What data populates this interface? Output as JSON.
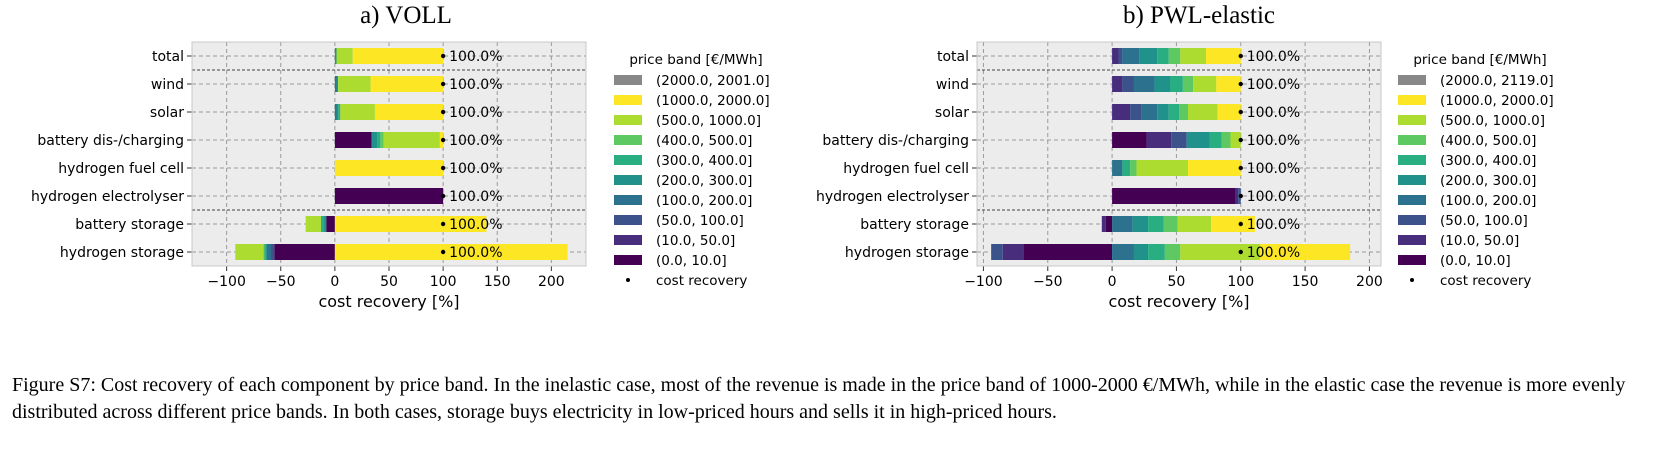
{
  "figure_caption": "Figure S7: Cost recovery of each component by price band. In the inelastic case, most of the revenue is made in the price band of 1000-2000 €/MWh, while in the elastic case the revenue is more evenly distributed across different price bands. In both cases, storage buys electricity in low-priced hours and sells it in high-priced hours.",
  "colors": {
    "bands": [
      "#440154",
      "#472d7b",
      "#3b528b",
      "#2c728e",
      "#21918c",
      "#28ae80",
      "#5ec962",
      "#addc30",
      "#fde725"
    ],
    "panel_bg": "#ececec",
    "marker": "#000000"
  },
  "chart_data": [
    {
      "type": "bar",
      "orientation": "horizontal",
      "stacked": true,
      "title": "a) VOLL",
      "xlabel": "cost recovery [%]",
      "xlim": [
        -132,
        232
      ],
      "xticks": [
        -100,
        -50,
        0,
        50,
        100,
        150,
        200
      ],
      "xtick_labels": [
        "−100",
        "−50",
        "0",
        "50",
        "100",
        "150",
        "200"
      ],
      "grid": true,
      "categories": [
        "total",
        "wind",
        "solar",
        "battery dis-/charging",
        "hydrogen fuel cell",
        "hydrogen electrolyser",
        "battery storage",
        "hydrogen storage"
      ],
      "group_separators_after": [
        "total",
        "hydrogen electrolyser"
      ],
      "legend_title": "price band [€/MWh]",
      "legend_placement": "right",
      "cost_recovery_label": "cost recovery",
      "series": [
        {
          "name": "(0.0, 10.0]",
          "values": [
            0,
            0,
            0,
            34,
            0,
            100,
            -8,
            -56
          ]
        },
        {
          "name": "(10.0, 50.0]",
          "values": [
            0,
            0,
            0,
            0,
            0,
            0,
            0,
            0
          ]
        },
        {
          "name": "(50.0, 100.0]",
          "values": [
            0,
            0,
            0,
            0,
            0,
            0,
            0,
            -3
          ]
        },
        {
          "name": "(100.0, 200.0]",
          "values": [
            0.5,
            1.5,
            1.5,
            0,
            0,
            0,
            0,
            -4
          ]
        },
        {
          "name": "(200.0, 300.0]",
          "values": [
            1,
            1.5,
            1.5,
            5,
            0,
            0,
            -2,
            -1
          ]
        },
        {
          "name": "(300.0, 400.0]",
          "values": [
            0,
            0,
            2,
            3,
            0,
            0,
            -3,
            -1
          ]
        },
        {
          "name": "(400.0, 500.0]",
          "values": [
            0,
            0,
            0,
            3,
            0,
            0,
            0,
            -1
          ]
        },
        {
          "name": "(500.0, 1000.0]",
          "values": [
            15,
            30,
            32,
            52,
            0,
            0,
            -14,
            -26
          ]
        },
        {
          "name": "(1000.0, 2000.0]",
          "values": [
            83.5,
            67,
            63,
            3,
            100,
            0,
            140,
            215
          ]
        },
        {
          "name": "(2000.0, 2001.0]",
          "values": [
            0,
            0,
            0,
            0,
            0,
            0,
            0,
            0
          ]
        }
      ],
      "cost_recovery": [
        100,
        100,
        100,
        100,
        100,
        100,
        100,
        100
      ],
      "cost_recovery_labels": [
        "100.0%",
        "100.0%",
        "100.0%",
        "100.0%",
        "100.0%",
        "100.0%",
        "100.0%",
        "100.0%"
      ]
    },
    {
      "type": "bar",
      "orientation": "horizontal",
      "stacked": true,
      "title": "b) PWL-elastic",
      "xlabel": "cost recovery [%]",
      "xlim": [
        -105,
        209
      ],
      "xticks": [
        -100,
        -50,
        0,
        50,
        100,
        150,
        200
      ],
      "xtick_labels": [
        "−100",
        "−50",
        "0",
        "50",
        "100",
        "150",
        "200"
      ],
      "grid": true,
      "categories": [
        "total",
        "wind",
        "solar",
        "battery dis-/charging",
        "hydrogen fuel cell",
        "hydrogen electrolyser",
        "battery storage",
        "hydrogen storage"
      ],
      "group_separators_after": [
        "total",
        "hydrogen electrolyser"
      ],
      "legend_title": "price band [€/MWh]",
      "legend_placement": "right",
      "cost_recovery_label": "cost recovery",
      "series": [
        {
          "name": "(0.0, 10.0]",
          "values": [
            0,
            0,
            0,
            27,
            0,
            96,
            -5,
            -69
          ]
        },
        {
          "name": "(10.0, 50.0]",
          "values": [
            5,
            8,
            14,
            19,
            0,
            2,
            -3,
            -16
          ]
        },
        {
          "name": "(50.0, 100.0]",
          "values": [
            3,
            9,
            9,
            12,
            0,
            2,
            0,
            -9
          ]
        },
        {
          "name": "(100.0, 200.0]",
          "values": [
            13,
            16,
            12,
            0,
            8,
            0,
            16,
            17
          ]
        },
        {
          "name": "(200.0, 300.0]",
          "values": [
            14,
            12,
            9,
            18,
            0,
            0,
            12,
            11
          ]
        },
        {
          "name": "(300.0, 400.0]",
          "values": [
            9,
            10,
            8,
            9,
            6,
            0,
            12,
            13
          ]
        },
        {
          "name": "(400.0, 500.0]",
          "values": [
            9,
            8,
            7,
            7,
            5,
            0,
            11,
            12
          ]
        },
        {
          "name": "(500.0, 1000.0]",
          "values": [
            20,
            18,
            23,
            8,
            40,
            0,
            26,
            62
          ]
        },
        {
          "name": "(1000.0, 2000.0]",
          "values": [
            27,
            19,
            18,
            0,
            41,
            0,
            34,
            70
          ]
        },
        {
          "name": "(2000.0, 2119.0]",
          "values": [
            0,
            0,
            0,
            0,
            0,
            0,
            0,
            0
          ]
        }
      ],
      "cost_recovery": [
        100,
        100,
        100,
        100,
        100,
        100,
        100,
        100
      ],
      "cost_recovery_labels": [
        "100.0%",
        "100.0%",
        "100.0%",
        "100.0%",
        "100.0%",
        "100.0%",
        "100.0%",
        "100.0%"
      ]
    }
  ]
}
